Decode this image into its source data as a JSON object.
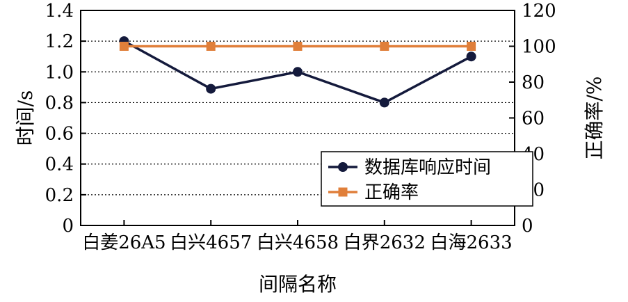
{
  "chart_data": {
    "type": "line",
    "title": "",
    "categories": [
      "白姜26A5",
      "白兴4657",
      "白兴4658",
      "白界2632",
      "白海2633"
    ],
    "xlabel": "间隔名称",
    "ylabel_left": "时间/s",
    "ylabel_right": "正确率/%",
    "ylim_left": [
      0,
      1.4
    ],
    "ylim_right": [
      0,
      120
    ],
    "yticks_left": [
      "0",
      "0.2",
      "0.4",
      "0.6",
      "0.8",
      "1.0",
      "1.2",
      "1.4"
    ],
    "yticks_right": [
      "0",
      "20",
      "40",
      "60",
      "80",
      "100",
      "120"
    ],
    "grid": "horizontal dotted",
    "legend_position": "lower-right",
    "series": [
      {
        "name": "数据库响应时间",
        "axis": "left",
        "marker": "circle",
        "color": "#141a3c",
        "values": [
          1.2,
          0.89,
          1.0,
          0.8,
          1.1
        ]
      },
      {
        "name": "正确率",
        "axis": "right",
        "marker": "square",
        "color": "#e07f3a",
        "values": [
          100,
          100,
          100,
          100,
          100
        ]
      }
    ]
  }
}
